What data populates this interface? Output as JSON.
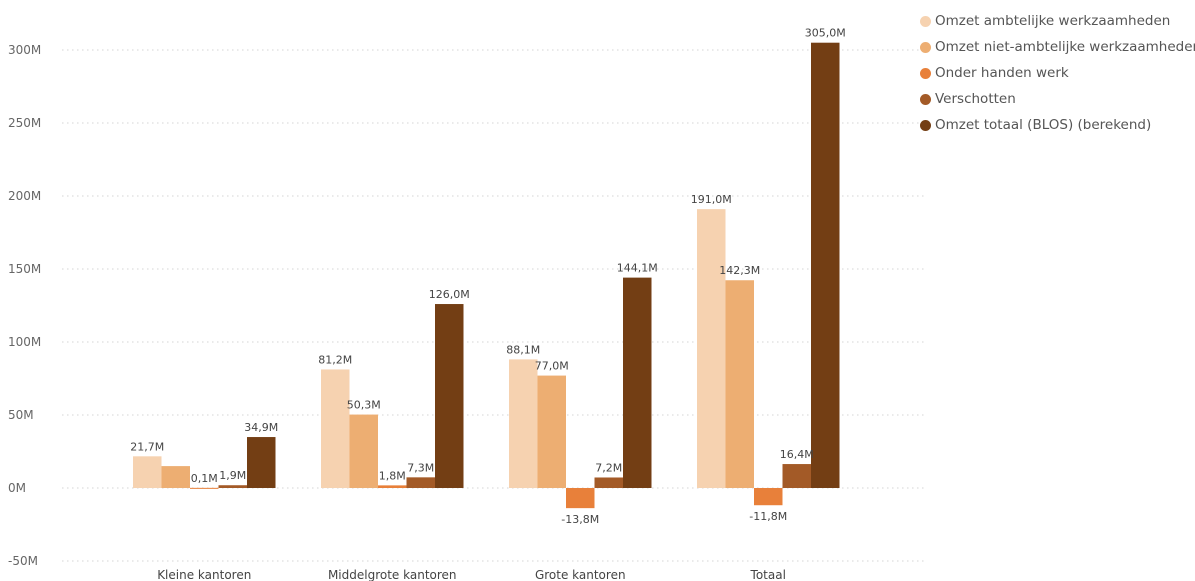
{
  "chart_data": {
    "type": "bar",
    "categories": [
      "Kleine kantoren",
      "Middelgrote kantoren",
      "Grote kantoren",
      "Totaal"
    ],
    "y_ticks": [
      "-50M",
      "0M",
      "50M",
      "100M",
      "150M",
      "200M",
      "250M",
      "300M"
    ],
    "y_tick_values": [
      -50,
      0,
      50,
      100,
      150,
      200,
      250,
      300
    ],
    "ylim": [
      -50,
      320
    ],
    "unit": "M",
    "grid": true,
    "legend_position": "top-right",
    "series": [
      {
        "name": "Omzet ambtelijke werkzaamheden",
        "color": "#F6D2B0",
        "values": [
          21.7,
          81.2,
          88.1,
          191.0
        ],
        "labels": [
          "21,7M",
          "81,2M",
          "88,1M",
          "191,0M"
        ]
      },
      {
        "name": "Omzet niet-ambtelijke werkzaamheden",
        "color": "#EDAE72",
        "values": [
          15.0,
          50.3,
          77.0,
          142.3
        ],
        "labels": [
          "",
          "50,3M",
          "77,0M",
          "142,3M"
        ]
      },
      {
        "name": "Onder handen werk",
        "color": "#E8803A",
        "values": [
          0.1,
          1.8,
          -13.8,
          -11.8
        ],
        "labels": [
          "0,1M",
          "1,8M",
          "-13,8M",
          "-11,8M"
        ]
      },
      {
        "name": "Verschotten",
        "color": "#A35A27",
        "values": [
          1.9,
          7.3,
          7.2,
          16.4
        ],
        "labels": [
          "1,9M",
          "7,3M",
          "7,2M",
          "16,4M"
        ]
      },
      {
        "name": "Omzet totaal (BLOS) (berekend)",
        "color": "#733E14",
        "values": [
          34.9,
          126.0,
          144.1,
          305.0
        ],
        "labels": [
          "34,9M",
          "126,0M",
          "144,1M",
          "305,0M"
        ]
      }
    ]
  }
}
